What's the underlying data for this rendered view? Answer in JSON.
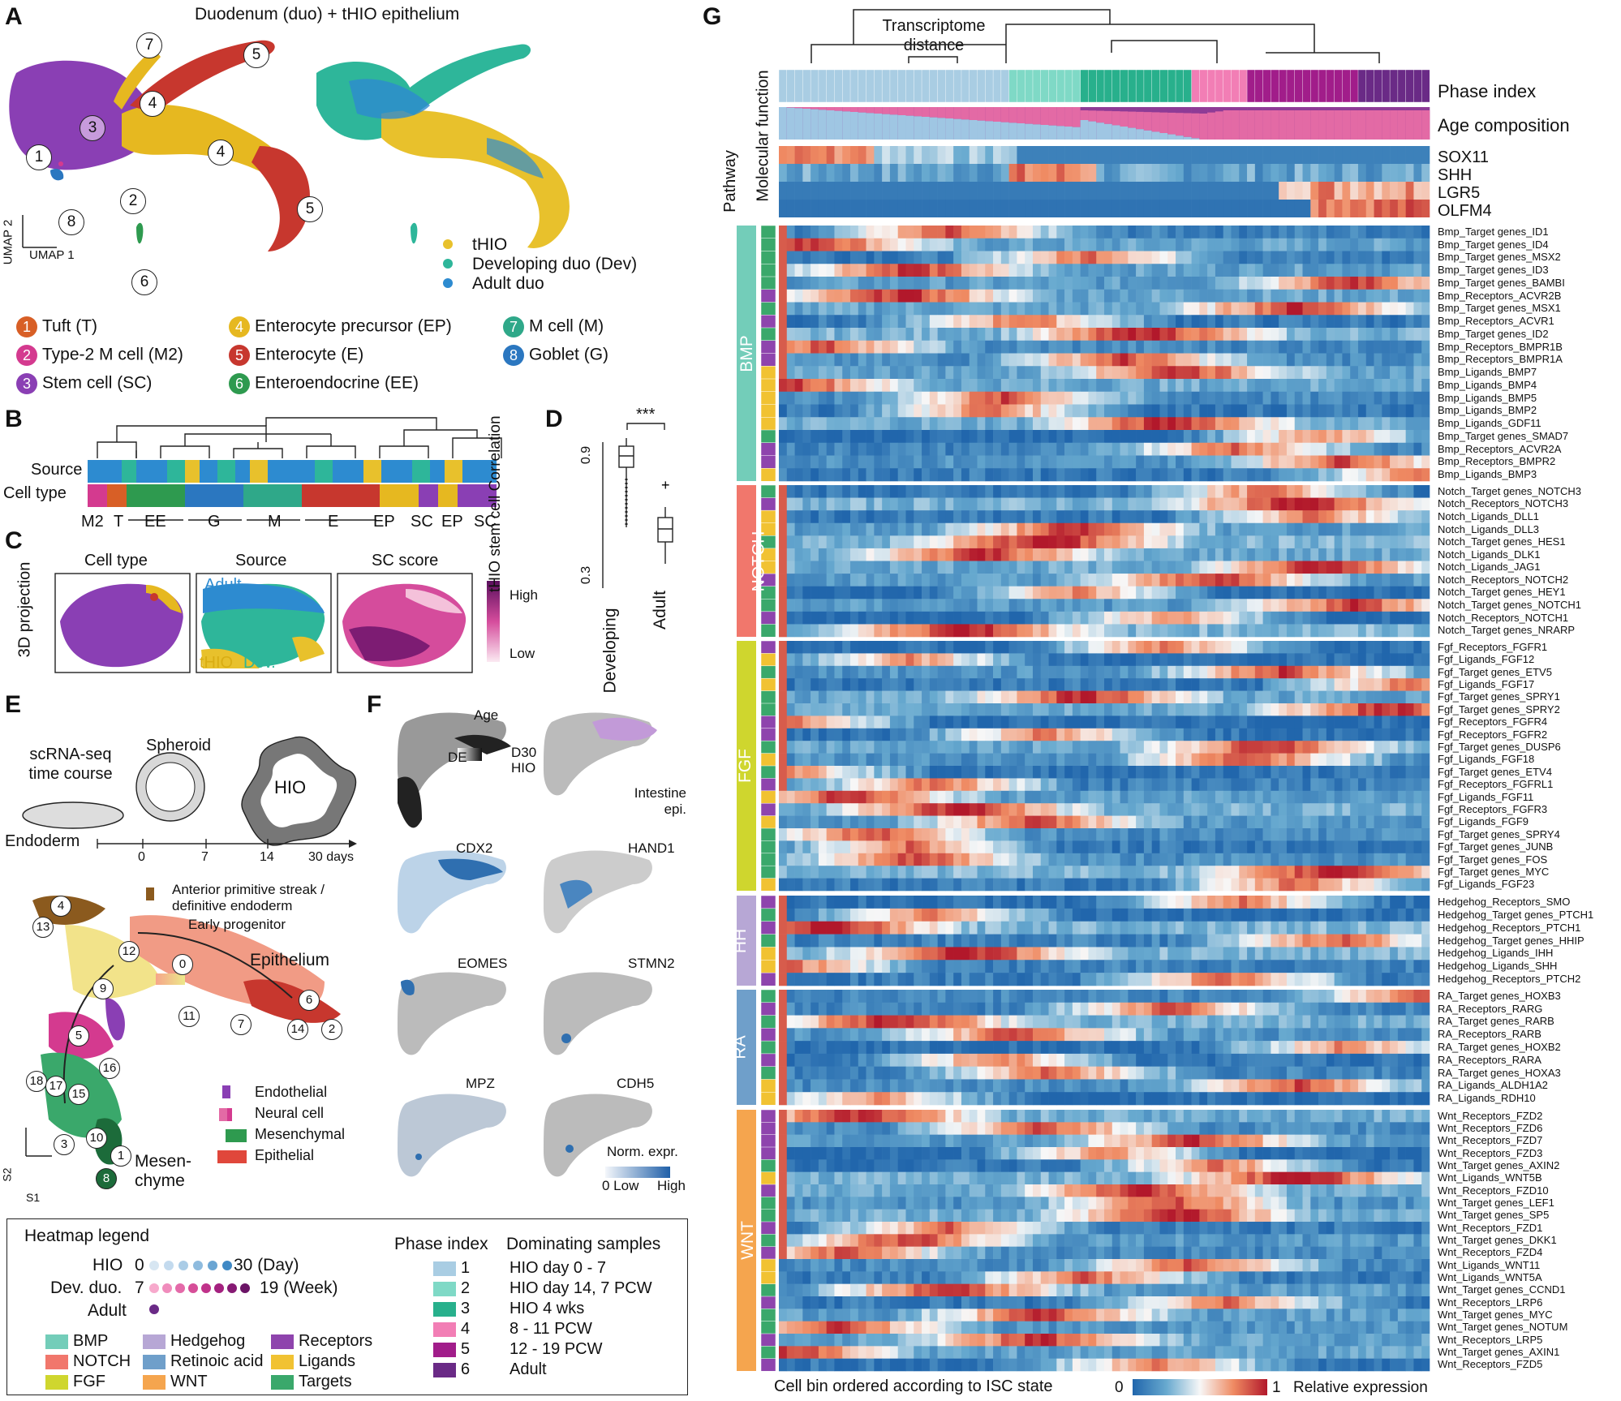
{
  "panelA": {
    "letter": "A",
    "title": "Duodenum (duo) + tHIO epithelium",
    "axis_y": "UMAP 2",
    "axis_x": "UMAP 1",
    "source_legend": [
      "tHIO",
      "Developing duo (Dev)",
      "Adult duo"
    ],
    "source_colors": [
      "#e8c12c",
      "#2eb69a",
      "#2d8bd0"
    ],
    "cell_types": [
      {
        "num": "1",
        "label": "Tuft (T)",
        "color": "#d85f26"
      },
      {
        "num": "2",
        "label": "Type-2 M cell (M2)",
        "color": "#d43a8f"
      },
      {
        "num": "3",
        "label": "Stem cell (SC)",
        "color": "#8a3fb4"
      },
      {
        "num": "4",
        "label": "Enterocyte precursor (EP)",
        "color": "#e6b820"
      },
      {
        "num": "5",
        "label": "Enterocyte (E)",
        "color": "#c7372e"
      },
      {
        "num": "6",
        "label": "Enteroendocrine (EE)",
        "color": "#2e9a4f"
      },
      {
        "num": "7",
        "label": "M cell (M)",
        "color": "#2fa889"
      },
      {
        "num": "8",
        "label": "Goblet (G)",
        "color": "#2b77c0"
      }
    ],
    "cluster_marks": [
      "7",
      "5",
      "4",
      "3",
      "4",
      "1",
      "2",
      "8",
      "5",
      "6"
    ]
  },
  "panelB": {
    "letter": "B",
    "row_labels": [
      "Source",
      "Cell type"
    ],
    "group_labels": [
      "M2",
      "T",
      "EE",
      "G",
      "M",
      "E",
      "EP",
      "SC",
      "EP",
      "SC"
    ]
  },
  "panelC": {
    "letter": "C",
    "side_label": "3D projection",
    "titles": [
      "Cell type",
      "Source",
      "SC score"
    ],
    "source_labels": [
      "Adult",
      "tHIO",
      "Dev."
    ],
    "scale": [
      "High",
      "Low"
    ]
  },
  "panelD": {
    "letter": "D",
    "ylabel": "tHIO stem cell Correlation",
    "ticks": [
      "0.9",
      "0.3"
    ],
    "groups": [
      "Developing",
      "Adult"
    ],
    "significance": "***"
  },
  "panelE": {
    "letter": "E",
    "labels": {
      "course": "scRNA-seq time course",
      "spheroid": "Spheroid",
      "hio": "HIO",
      "endoderm": "Endoderm",
      "ticks": [
        "0",
        "7",
        "14",
        "30 days"
      ],
      "aps": "Anterior primitive streak / definitive endoderm",
      "early": "Early progenitor",
      "epithelium": "Epithelium",
      "mesenchyme": "Mesen- chyme",
      "s2": "S2",
      "s1": "S1"
    },
    "legend": [
      "Endothelial",
      "Neural cell",
      "Mesenchymal",
      "Epithelial"
    ],
    "clusters": [
      "4",
      "13",
      "12",
      "0",
      "9",
      "6",
      "14",
      "2",
      "7",
      "11",
      "5",
      "16",
      "18",
      "17",
      "15",
      "3",
      "10",
      "1",
      "8"
    ]
  },
  "panelF": {
    "letter": "F",
    "panels": [
      "Age",
      "Intestine epi.",
      "CDX2",
      "HAND1",
      "EOMES",
      "STMN2",
      "MPZ",
      "CDH5"
    ],
    "age_scale": [
      "DE",
      "D30 HIO"
    ],
    "norm_label": "Norm. expr.",
    "norm_scale": [
      "0 Low",
      "High"
    ]
  },
  "panelG": {
    "letter": "G",
    "dendro_label": "Transcriptome distance",
    "row_headers": [
      "Phase index",
      "Age composition"
    ],
    "side_headers": [
      "Pathway",
      "Molecular function"
    ],
    "markers": [
      "SOX11",
      "SHH",
      "LGR5",
      "OLFM4"
    ],
    "pathways": [
      "BMP",
      "NOTCH",
      "FGF",
      "HH",
      "RA",
      "WNT"
    ],
    "pathway_colors": [
      "#73cdb9",
      "#f1776c",
      "#cfd62e",
      "#b7a7d5",
      "#6f9fca",
      "#f5a54e"
    ],
    "genes": {
      "BMP": [
        "Bmp_Target genes_ID1",
        "Bmp_Target genes_ID4",
        "Bmp_Target genes_MSX2",
        "Bmp_Target genes_ID3",
        "Bmp_Target genes_BAMBI",
        "Bmp_Receptors_ACVR2B",
        "Bmp_Target genes_MSX1",
        "Bmp_Receptors_ACVR1",
        "Bmp_Target genes_ID2",
        "Bmp_Receptors_BMPR1B",
        "Bmp_Receptors_BMPR1A",
        "Bmp_Ligands_BMP7",
        "Bmp_Ligands_BMP4",
        "Bmp_Ligands_BMP5",
        "Bmp_Ligands_BMP2",
        "Bmp_Ligands_GDF11",
        "Bmp_Target genes_SMAD7",
        "Bmp_Receptors_ACVR2A",
        "Bmp_Receptors_BMPR2",
        "Bmp_Ligands_BMP3"
      ],
      "NOTCH": [
        "Notch_Target genes_NOTCH3",
        "Notch_Receptors_NOTCH3",
        "Notch_Ligands_DLL1",
        "Notch_Ligands_DLL3",
        "Notch_Target genes_HES1",
        "Notch_Ligands_DLK1",
        "Notch_Ligands_JAG1",
        "Notch_Receptors_NOTCH2",
        "Notch_Target genes_HEY1",
        "Notch_Target genes_NOTCH1",
        "Notch_Receptors_NOTCH1",
        "Notch_Target genes_NRARP"
      ],
      "FGF": [
        "Fgf_Receptors_FGFR1",
        "Fgf_Ligands_FGF12",
        "Fgf_Target genes_ETV5",
        "Fgf_Ligands_FGF17",
        "Fgf_Target genes_SPRY1",
        "Fgf_Target genes_SPRY2",
        "Fgf_Receptors_FGFR4",
        "Fgf_Receptors_FGFR2",
        "Fgf_Target genes_DUSP6",
        "Fgf_Ligands_FGF18",
        "Fgf_Target genes_ETV4",
        "Fgf_Receptors_FGFRL1",
        "Fgf_Ligands_FGF11",
        "Fgf_Receptors_FGFR3",
        "Fgf_Ligands_FGF9",
        "Fgf_Target genes_SPRY4",
        "Fgf_Target genes_JUNB",
        "Fgf_Target genes_FOS",
        "Fgf_Target genes_MYC",
        "Fgf_Ligands_FGF23"
      ],
      "HH": [
        "Hedgehog_Receptors_SMO",
        "Hedgehog_Target genes_PTCH1",
        "Hedgehog_Receptors_PTCH1",
        "Hedgehog_Target genes_HHIP",
        "Hedgehog_Ligands_IHH",
        "Hedgehog_Ligands_SHH",
        "Hedgehog_Receptors_PTCH2"
      ],
      "RA": [
        "RA_Target genes_HOXB3",
        "RA_Receptors_RARG",
        "RA_Target genes_RARB",
        "RA_Receptors_RARB",
        "RA_Target genes_HOXB2",
        "RA_Receptors_RARA",
        "RA_Target genes_HOXA3",
        "RA_Ligands_ALDH1A2",
        "RA_Ligands_RDH10"
      ],
      "WNT": [
        "Wnt_Receptors_FZD2",
        "Wnt_Receptors_FZD6",
        "Wnt_Receptors_FZD7",
        "Wnt_Receptors_FZD3",
        "Wnt_Target genes_AXIN2",
        "Wnt_Ligands_WNT5B",
        "Wnt_Receptors_FZD10",
        "Wnt_Target genes_LEF1",
        "Wnt_Target genes_SP5",
        "Wnt_Receptors_FZD1",
        "Wnt_Target genes_DKK1",
        "Wnt_Receptors_FZD4",
        "Wnt_Ligands_WNT11",
        "Wnt_Ligands_WNT5A",
        "Wnt_Target genes_CCND1",
        "Wnt_Receptors_LRP6",
        "Wnt_Target genes_MYC",
        "Wnt_Target genes_NOTUM",
        "Wnt_Receptors_LRP5",
        "Wnt_Target genes_AXIN1",
        "Wnt_Receptors_FZD5"
      ]
    },
    "bottom_label": "Cell bin ordered according to ISC state",
    "scale_min": "0",
    "scale_max": "1",
    "scale_label": "Relative expression"
  },
  "heatmap_legend": {
    "title": "Heatmap legend",
    "hio": "HIO",
    "hio_start": "0",
    "hio_end": "30 (Day)",
    "dev": "Dev. duo.",
    "dev_start": "7",
    "dev_end": "19 (Week)",
    "adult": "Adult",
    "categories": [
      {
        "label": "BMP",
        "color": "#73cdb9"
      },
      {
        "label": "NOTCH",
        "color": "#f1776c"
      },
      {
        "label": "FGF",
        "color": "#cfd62e"
      },
      {
        "label": "Hedgehog",
        "color": "#b7a7d5"
      },
      {
        "label": "Retinoic acid",
        "color": "#6f9fca"
      },
      {
        "label": "WNT",
        "color": "#f5a54e"
      },
      {
        "label": "Receptors",
        "color": "#8e44ad"
      },
      {
        "label": "Ligands",
        "color": "#f1c232"
      },
      {
        "label": "Targets",
        "color": "#3aa86b"
      }
    ],
    "phase_header": "Phase index",
    "dominating_header": "Dominating samples",
    "phases": [
      {
        "num": "1",
        "label": "HIO day 0 - 7",
        "color": "#a9cde3"
      },
      {
        "num": "2",
        "label": "HIO day 14, 7 PCW",
        "color": "#7fd9c6"
      },
      {
        "num": "3",
        "label": "HIO 4 wks",
        "color": "#28b08c"
      },
      {
        "num": "4",
        "label": "8 - 11 PCW",
        "color": "#f27eb5"
      },
      {
        "num": "5",
        "label": "12 - 19 PCW",
        "color": "#a11d8a"
      },
      {
        "num": "6",
        "label": "Adult",
        "color": "#6a2a86"
      }
    ]
  }
}
